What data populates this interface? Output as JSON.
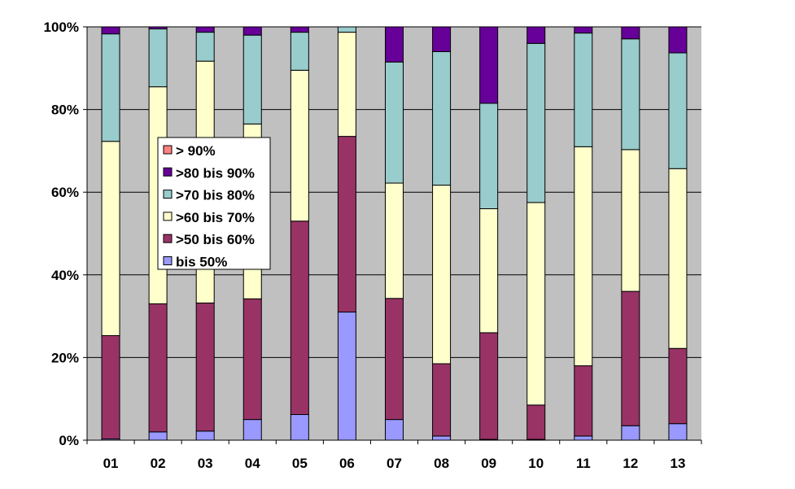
{
  "chart_data": {
    "type": "bar",
    "stacked": true,
    "percent_stacked": true,
    "categories": [
      "01",
      "02",
      "03",
      "04",
      "05",
      "06",
      "07",
      "08",
      "09",
      "10",
      "11",
      "12",
      "13"
    ],
    "series": [
      {
        "name": "bis 50%",
        "color": "#9999FF",
        "values": [
          0.3,
          2,
          2.2,
          5,
          6.2,
          31,
          5,
          1,
          0.2,
          0.2,
          1,
          3.5,
          4
        ]
      },
      {
        "name": ">50 bis 60%",
        "color": "#993366",
        "values": [
          25,
          31,
          31,
          29.2,
          46.8,
          42.5,
          29.3,
          17.5,
          25.8,
          8.3,
          17,
          32.5,
          18.2
        ]
      },
      {
        "name": ">60 bis 70%",
        "color": "#FFFFCC",
        "values": [
          47,
          52.5,
          58.5,
          42.3,
          36.5,
          25.2,
          27.9,
          43.2,
          30,
          49,
          53,
          34.3,
          43.5
        ]
      },
      {
        "name": ">70 bis 80%",
        "color": "#99CCCC",
        "values": [
          26,
          14,
          7,
          21.5,
          9.2,
          1.3,
          29.3,
          32.3,
          25.5,
          38.5,
          27.5,
          26.8,
          28
        ]
      },
      {
        "name": ">80 bis 90%",
        "color": "#660099",
        "values": [
          1.7,
          0.5,
          1.3,
          2,
          1.3,
          0,
          8.5,
          6,
          18.5,
          4,
          1.5,
          2.9,
          6.3
        ]
      },
      {
        "name": "> 90%",
        "color": "#FF8080",
        "values": [
          0,
          0,
          0,
          0,
          0,
          0,
          0,
          0,
          0,
          0,
          0,
          0,
          0
        ]
      }
    ],
    "yticks": [
      "0%",
      "20%",
      "40%",
      "60%",
      "80%",
      "100%"
    ],
    "ylim": [
      0,
      100
    ],
    "grid": true,
    "plot_background": "#C0C0C0",
    "legend_placement": "left-center inside plot",
    "legend_order": [
      "> 90%",
      ">80 bis 90%",
      ">70 bis 80%",
      ">60 bis 70%",
      ">50 bis 60%",
      "bis 50%"
    ],
    "title": "",
    "xlabel": "",
    "ylabel": ""
  }
}
